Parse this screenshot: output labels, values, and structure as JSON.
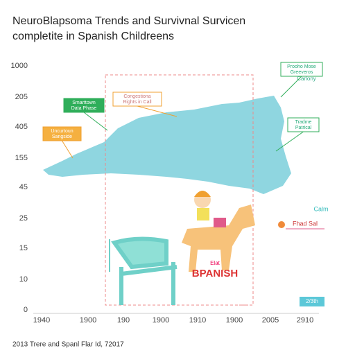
{
  "header": {
    "title_lines": [
      "NeuroBlapsoma Trends and Survivnal Survicen",
      "completite in Spanish Childreens"
    ]
  },
  "y_labels": [
    "1000",
    "205",
    "405",
    "155",
    "45",
    "25",
    "15",
    "10",
    "0"
  ],
  "x_labels": [
    "1940",
    "1900",
    "190",
    "1900",
    "1910",
    "1900",
    "2005",
    "2910"
  ],
  "callouts": [
    {
      "lines": [
        "Smarttown",
        "Data Phase"
      ]
    },
    {
      "lines": [
        "Congestiona",
        "Rights in Call"
      ]
    },
    {
      "lines": [
        "Uncurtoun",
        "Sangside"
      ]
    },
    {
      "lines": [
        "Prooho Mose",
        "Greeveros"
      ]
    },
    {
      "lines": [
        "Tradme",
        "Patrical"
      ]
    }
  ],
  "notes": {
    "carlony": "Carlony",
    "calm": "Calm",
    "fhad": "Fhad  Sal",
    "elat": "Elat",
    "spanish": "BPANISH",
    "badge": "2/3th"
  },
  "footer": "2013 Trere and Spanl Flar Id, 72017"
}
